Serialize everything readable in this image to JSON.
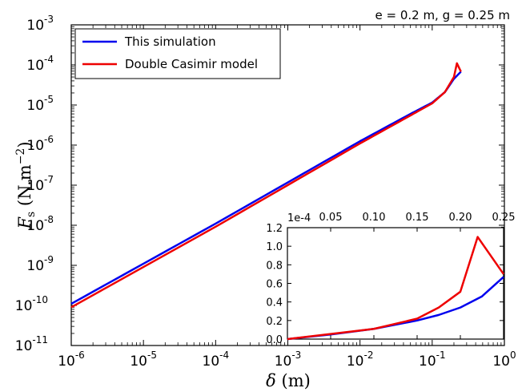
{
  "chart_data": [
    {
      "type": "line",
      "xscale": "log",
      "yscale": "log",
      "xlim": [
        1e-06,
        1
      ],
      "ylim": [
        1e-11,
        0.001
      ],
      "xlabel": "δ (m)",
      "ylabel": "F_s (N.m^-2)",
      "xticks": [
        {
          "base": "10",
          "exp": "-6"
        },
        {
          "base": "10",
          "exp": "-5"
        },
        {
          "base": "10",
          "exp": "-4"
        },
        {
          "base": "10",
          "exp": "-3"
        },
        {
          "base": "10",
          "exp": "-2"
        },
        {
          "base": "10",
          "exp": "-1"
        },
        {
          "base": "10",
          "exp": "0"
        }
      ],
      "yticks": [
        {
          "base": "10",
          "exp": "-11"
        },
        {
          "base": "10",
          "exp": "-10"
        },
        {
          "base": "10",
          "exp": "-9"
        },
        {
          "base": "10",
          "exp": "-8"
        },
        {
          "base": "10",
          "exp": "-7"
        },
        {
          "base": "10",
          "exp": "-6"
        },
        {
          "base": "10",
          "exp": "-5"
        },
        {
          "base": "10",
          "exp": "-4"
        },
        {
          "base": "10",
          "exp": "-3"
        }
      ],
      "annotation": "e = 0.2 m, g = 0.25 m",
      "legend_position": "top-left",
      "series": [
        {
          "name": "This simulation",
          "color": "#0000ee",
          "points": [
            [
              1e-06,
              1.1e-10
            ],
            [
              0.0001,
              1.1e-08
            ],
            [
              0.01,
              1.25e-06
            ],
            [
              0.05,
              6e-06
            ],
            [
              0.1,
              1.15e-05
            ],
            [
              0.15,
              2.1e-05
            ],
            [
              0.2,
              4.5e-05
            ],
            [
              0.25,
              6.8e-05
            ]
          ]
        },
        {
          "name": "Double Casimir model",
          "color": "#ee0000",
          "points": [
            [
              1e-06,
              9e-11
            ],
            [
              0.0001,
              9.2e-09
            ],
            [
              0.01,
              1.1e-06
            ],
            [
              0.05,
              5.5e-06
            ],
            [
              0.1,
              1.1e-05
            ],
            [
              0.15,
              2.1e-05
            ],
            [
              0.2,
              5e-05
            ],
            [
              0.22,
              0.00011
            ],
            [
              0.25,
              6.8e-05
            ]
          ]
        }
      ]
    },
    {
      "type": "line",
      "inset": true,
      "xscale": "linear",
      "xlim": [
        0,
        0.25
      ],
      "ylim": [
        0,
        1.2
      ],
      "y_multiplier": "1e-4",
      "xticks": [
        "0.05",
        "0.10",
        "0.15",
        "0.20",
        "0.25"
      ],
      "yticks": [
        "0.0",
        "0.2",
        "0.4",
        "0.6",
        "0.8",
        "1.0",
        "1.2"
      ],
      "series": [
        {
          "name": "This simulation",
          "color": "#0000ee",
          "points": [
            [
              0,
              0
            ],
            [
              0.05,
              0.05
            ],
            [
              0.1,
              0.11
            ],
            [
              0.15,
              0.2
            ],
            [
              0.175,
              0.26
            ],
            [
              0.2,
              0.34
            ],
            [
              0.225,
              0.46
            ],
            [
              0.25,
              0.67
            ]
          ]
        },
        {
          "name": "Double Casimir model",
          "color": "#ee0000",
          "points": [
            [
              0,
              0
            ],
            [
              0.05,
              0.055
            ],
            [
              0.1,
              0.11
            ],
            [
              0.15,
              0.22
            ],
            [
              0.175,
              0.34
            ],
            [
              0.2,
              0.51
            ],
            [
              0.22,
              1.1
            ],
            [
              0.25,
              0.7
            ]
          ]
        }
      ]
    }
  ]
}
